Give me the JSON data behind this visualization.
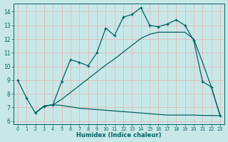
{
  "bg_color": "#c8e8e8",
  "grid_color": "#e0b8b8",
  "line_color": "#006060",
  "xlabel": "Humidex (Indice chaleur)",
  "xlim": [
    -0.5,
    23.5
  ],
  "ylim": [
    5.8,
    14.6
  ],
  "yticks": [
    6,
    7,
    8,
    9,
    10,
    11,
    12,
    13,
    14
  ],
  "xticks": [
    0,
    1,
    2,
    3,
    4,
    5,
    6,
    7,
    8,
    9,
    10,
    11,
    12,
    13,
    14,
    15,
    16,
    17,
    18,
    19,
    20,
    21,
    22,
    23
  ],
  "line1_x": [
    0,
    1,
    2,
    3,
    4,
    5,
    6,
    7,
    8,
    9,
    10,
    11,
    12,
    13,
    14,
    15,
    16,
    17,
    18,
    19,
    20,
    21,
    22,
    23
  ],
  "line1_y": [
    9.0,
    7.7,
    6.6,
    7.1,
    7.2,
    8.9,
    10.5,
    10.3,
    10.05,
    11.0,
    12.8,
    12.25,
    13.6,
    13.8,
    14.3,
    13.0,
    12.9,
    13.1,
    13.4,
    13.0,
    11.9,
    8.9,
    8.5,
    6.4
  ],
  "line2_x": [
    2,
    3,
    4,
    5,
    6,
    7,
    8,
    9,
    10,
    11,
    12,
    13,
    14,
    15,
    16,
    17,
    18,
    19,
    20,
    21,
    22,
    23
  ],
  "line2_y": [
    6.6,
    7.1,
    7.2,
    7.6,
    8.1,
    8.6,
    9.1,
    9.6,
    10.1,
    10.55,
    11.05,
    11.55,
    12.05,
    12.35,
    12.5,
    12.5,
    12.5,
    12.5,
    12.0,
    10.3,
    8.5,
    6.4
  ],
  "line3_x": [
    2,
    3,
    4,
    5,
    6,
    7,
    8,
    9,
    10,
    11,
    12,
    13,
    14,
    15,
    16,
    17,
    18,
    19,
    20,
    21,
    22,
    23
  ],
  "line3_y": [
    6.6,
    7.1,
    7.2,
    7.15,
    7.05,
    6.95,
    6.9,
    6.85,
    6.8,
    6.75,
    6.7,
    6.65,
    6.6,
    6.55,
    6.5,
    6.45,
    6.45,
    6.45,
    6.45,
    6.42,
    6.42,
    6.4
  ]
}
